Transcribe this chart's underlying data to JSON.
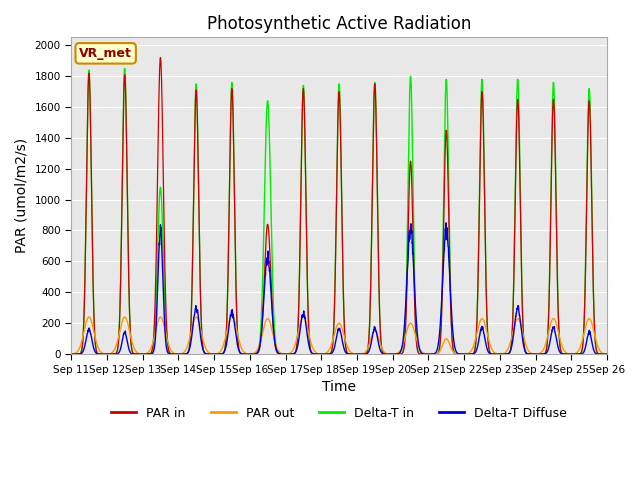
{
  "title": "Photosynthetic Active Radiation",
  "xlabel": "Time",
  "ylabel": "PAR (umol/m2/s)",
  "ylim": [
    0,
    2050
  ],
  "yticks": [
    0,
    200,
    400,
    600,
    800,
    1000,
    1200,
    1400,
    1600,
    1800,
    2000
  ],
  "annotation_text": "VR_met",
  "series_colors": {
    "par_in": "#cc0000",
    "par_out": "#ff9900",
    "delta_t_in": "#00ee00",
    "delta_t_diffuse": "#0000dd"
  },
  "legend_labels": [
    "PAR in",
    "PAR out",
    "Delta-T in",
    "Delta-T Diffuse"
  ],
  "n_days": 15,
  "start_day": 11,
  "background_color": "#e8e8e8",
  "title_fontsize": 12,
  "axis_label_fontsize": 10,
  "delta_t_in_peaks": [
    1840,
    1850,
    1080,
    1750,
    1760,
    1640,
    1740,
    1750,
    1760,
    1800,
    1780,
    1780,
    1780,
    1760,
    1720
  ],
  "par_in_peaks": [
    1820,
    1810,
    1920,
    1710,
    1720,
    840,
    1720,
    1700,
    1750,
    1250,
    1450,
    1700,
    1650,
    1650,
    1640
  ],
  "par_out_peaks": [
    240,
    240,
    240,
    240,
    250,
    230,
    240,
    200,
    150,
    200,
    100,
    230,
    230,
    230,
    230
  ],
  "delta_t_diff_peaks": [
    160,
    140,
    810,
    300,
    270,
    630,
    260,
    165,
    165,
    810,
    800,
    170,
    300,
    170,
    140
  ],
  "delta_t_diff_width": [
    0.08,
    0.07,
    0.07,
    0.09,
    0.09,
    0.1,
    0.09,
    0.08,
    0.08,
    0.1,
    0.1,
    0.08,
    0.09,
    0.08,
    0.07
  ],
  "green_width": [
    0.07,
    0.07,
    0.08,
    0.07,
    0.07,
    0.09,
    0.07,
    0.07,
    0.07,
    0.07,
    0.07,
    0.07,
    0.07,
    0.07,
    0.07
  ],
  "par_out_width": [
    0.14,
    0.14,
    0.14,
    0.14,
    0.14,
    0.14,
    0.14,
    0.14,
    0.12,
    0.14,
    0.1,
    0.14,
    0.14,
    0.14,
    0.14
  ]
}
